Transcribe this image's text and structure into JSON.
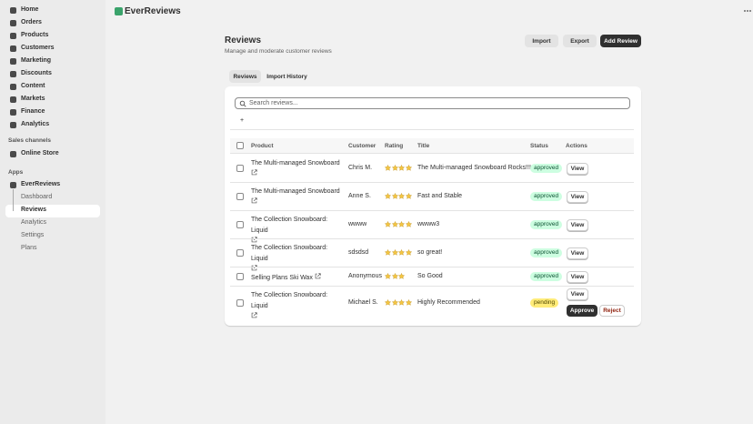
{
  "nav": {
    "items": [
      "Home",
      "Orders",
      "Products",
      "Customers",
      "Marketing",
      "Discounts",
      "Content",
      "Markets",
      "Finance",
      "Analytics"
    ],
    "sales_channels": "Sales channels",
    "online_store": "Online Store",
    "apps": "Apps",
    "app_name": "EverReviews",
    "app_items": [
      "Dashboard",
      "Reviews",
      "Analytics",
      "Settings",
      "Plans"
    ],
    "selected_app_item": 1
  },
  "header": {
    "app_title": "EverReviews"
  },
  "page": {
    "title": "Reviews",
    "subtitle": "Manage and moderate customer reviews",
    "buttons": [
      "Import",
      "Export",
      "Add Review"
    ]
  },
  "tabs": [
    "Reviews",
    "Import History"
  ],
  "search_placeholder": "Search reviews...",
  "add_filter": "+",
  "table": {
    "columns": [
      "Product",
      "Customer",
      "Rating",
      "Title",
      "Status",
      "Actions"
    ],
    "rows": [
      {
        "product": "The Multi-managed Snowboard",
        "customer": "Chris M.",
        "rating": 4,
        "title": "The Multi-managed Snowboard Rocks!!!",
        "status": "approved",
        "actions": [
          "View"
        ]
      },
      {
        "product": "The Multi-managed Snowboard",
        "customer": "Anne S.",
        "rating": 4,
        "title": "Fast and Stable",
        "status": "approved",
        "actions": [
          "View"
        ]
      },
      {
        "product": "The Collection Snowboard: Liquid",
        "customer": "wwww",
        "rating": 4,
        "title": "wwww3",
        "status": "approved",
        "actions": [
          "View"
        ]
      },
      {
        "product": "The Collection Snowboard: Liquid",
        "customer": "sdsdsd",
        "rating": 4,
        "title": "so great!",
        "status": "approved",
        "actions": [
          "View"
        ]
      },
      {
        "product": "Selling Plans Ski Wax",
        "customer": "Anonymous",
        "rating": 3,
        "title": "So Good",
        "status": "approved",
        "actions": [
          "View"
        ]
      },
      {
        "product": "The Collection Snowboard: Liquid",
        "customer": "Michael S.",
        "rating": 4,
        "title": "Highly Recommended",
        "status": "pending",
        "actions": [
          "View",
          "Approve",
          "Reject"
        ]
      }
    ]
  }
}
